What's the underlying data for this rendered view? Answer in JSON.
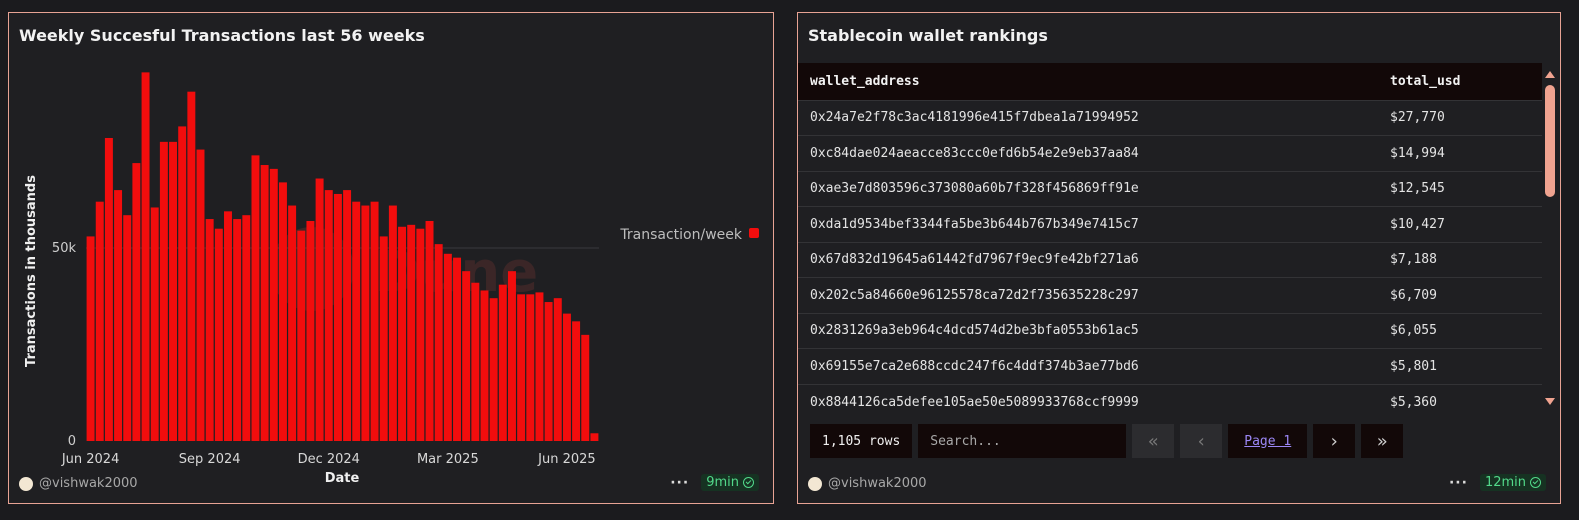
{
  "left_panel": {
    "title": "Weekly Succesful Transactions last 56 weeks",
    "author": "@vishwak2000",
    "refresh": "9min",
    "menu": "···"
  },
  "right_panel": {
    "title": "Stablecoin wallet rankings",
    "author": "@vishwak2000",
    "refresh": "12min",
    "menu": "···",
    "columns": [
      "wallet_address",
      "total_usd"
    ],
    "rows": [
      [
        "0x24a7e2f78c3ac4181996e415f7dbea1a71994952",
        "$27,770"
      ],
      [
        "0xc84dae024aeacce83ccc0efd6b54e2e9eb37aa84",
        "$14,994"
      ],
      [
        "0xae3e7d803596c373080a60b7f328f456869ff91e",
        "$12,545"
      ],
      [
        "0xda1d9534bef3344fa5be3b644b767b349e7415c7",
        "$10,427"
      ],
      [
        "0x67d832d19645a61442fd7967f9ec9fe42bf271a6",
        "$7,188"
      ],
      [
        "0x202c5a84660e96125578ca72d2f735635228c297",
        "$6,709"
      ],
      [
        "0x2831269a3eb964c4dcd574d2be3bfa0553b61ac5",
        "$6,055"
      ],
      [
        "0x69155e7ca2e688ccdc247f6c4ddf374b3ae77bd6",
        "$5,801"
      ],
      [
        "0x8844126ca5defee105ae50e5089933768ccf9999",
        "$5,360"
      ]
    ],
    "rows_count": "1,105 rows",
    "search_placeholder": "Search...",
    "page_label": "Page 1",
    "pager": {
      "first": "«",
      "prev": "‹",
      "next": "›",
      "last": "»"
    }
  },
  "chart_data": {
    "type": "bar",
    "title": "Weekly Succesful Transactions last 56 weeks",
    "xlabel": "Date",
    "ylabel": "Transactions in thousands",
    "ylim": [
      0,
      100000
    ],
    "y_ticks": [
      {
        "value": 0,
        "label": "0"
      },
      {
        "value": 50000,
        "label": "50k"
      }
    ],
    "x_ticks": [
      {
        "index": 0.5,
        "label": "Jun 2024"
      },
      {
        "index": 13.5,
        "label": "Sep 2024"
      },
      {
        "index": 26.5,
        "label": "Dec 2024"
      },
      {
        "index": 39.5,
        "label": "Mar 2025"
      },
      {
        "index": 52.5,
        "label": "Jun 2025"
      }
    ],
    "legend": {
      "label": "Transaction/week",
      "position": "right"
    },
    "color": "#f20d0d",
    "series": [
      {
        "name": "Transaction/week",
        "values": [
          53000,
          62000,
          78500,
          65000,
          58500,
          72000,
          95500,
          60500,
          77500,
          77500,
          81500,
          90500,
          75500,
          57500,
          55000,
          59500,
          57500,
          58500,
          74000,
          71500,
          70500,
          67000,
          61000,
          54500,
          57000,
          68000,
          65000,
          64000,
          65000,
          62000,
          61000,
          62000,
          53000,
          61000,
          55500,
          56000,
          55000,
          57000,
          51000,
          48500,
          47500,
          44000,
          41000,
          39000,
          37000,
          40500,
          44000,
          38000,
          38000,
          38500,
          36000,
          37000,
          33000,
          31000,
          27500,
          2000
        ]
      }
    ]
  }
}
